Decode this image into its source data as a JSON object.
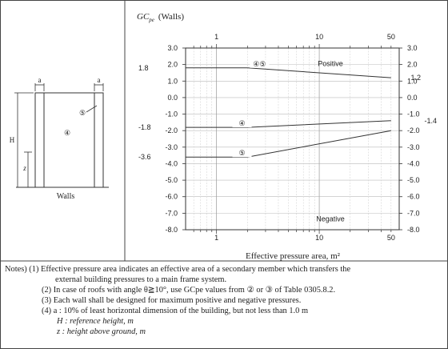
{
  "chart_data": {
    "type": "line",
    "title": "GCpe (Walls)",
    "title_main": "GC",
    "title_sub": "pe",
    "title_paren": "(Walls)",
    "xlabel": "Effective pressure area, m²",
    "x_scale": "log",
    "xlim": [
      0.5,
      60
    ],
    "xticks_top": [
      "1",
      "10",
      "50"
    ],
    "xticks_bottom": [
      "1",
      "10",
      "50"
    ],
    "ylim": [
      -8.0,
      3.0
    ],
    "yticks_left": [
      "3.0",
      "2.0",
      "1.0",
      "0.0",
      "-1.0",
      "-2.0",
      "-3.0",
      "-4.0",
      "-5.0",
      "-6.0",
      "-7.0",
      "-8.0"
    ],
    "yticks_right": [
      "3.0",
      "2.0",
      "1.0",
      "0.0",
      "-1.0",
      "-2.0",
      "-3.0",
      "-4.0",
      "-5.0",
      "-6.0",
      "-7.0",
      "-8.0"
    ],
    "left_annotations": [
      "1.8",
      "-1.8",
      "-3.6"
    ],
    "right_annotations": [
      "1.2",
      "-1.4"
    ],
    "region_labels": [
      "Positive",
      "Negative"
    ],
    "series": [
      {
        "name": "④⑤",
        "x": [
          0.5,
          2,
          50
        ],
        "y": [
          1.8,
          1.8,
          1.2
        ]
      },
      {
        "name": "④",
        "x": [
          0.5,
          2,
          50
        ],
        "y": [
          -1.8,
          -1.8,
          -1.4
        ]
      },
      {
        "name": "⑤",
        "x": [
          0.5,
          2,
          50
        ],
        "y": [
          -3.6,
          -3.6,
          -2.0
        ]
      }
    ],
    "grid": true
  },
  "diagram": {
    "caption": "Walls",
    "dim_a_left": "a",
    "dim_a_right": "a",
    "height_label": "H",
    "z_label": "z",
    "zone4_label": "④",
    "zone5_label": "⑤"
  },
  "notes": [
    "Notes)  (1) Effective pressure area indicates an effective area of a secondary member which transfers the",
    "external building pressures to a main frame system.",
    "(2) In case of roofs with angle θ≧10°, use GCpe values from ② or ③ of Table 0305.8.2.",
    "(3) Each wall shall be designed for maximum positive and negative pressures.",
    "(4) a : 10% of least horizontal dimension of the building, but not less than 1.0 m",
    "H : reference height, m",
    "z : height above ground, m"
  ]
}
